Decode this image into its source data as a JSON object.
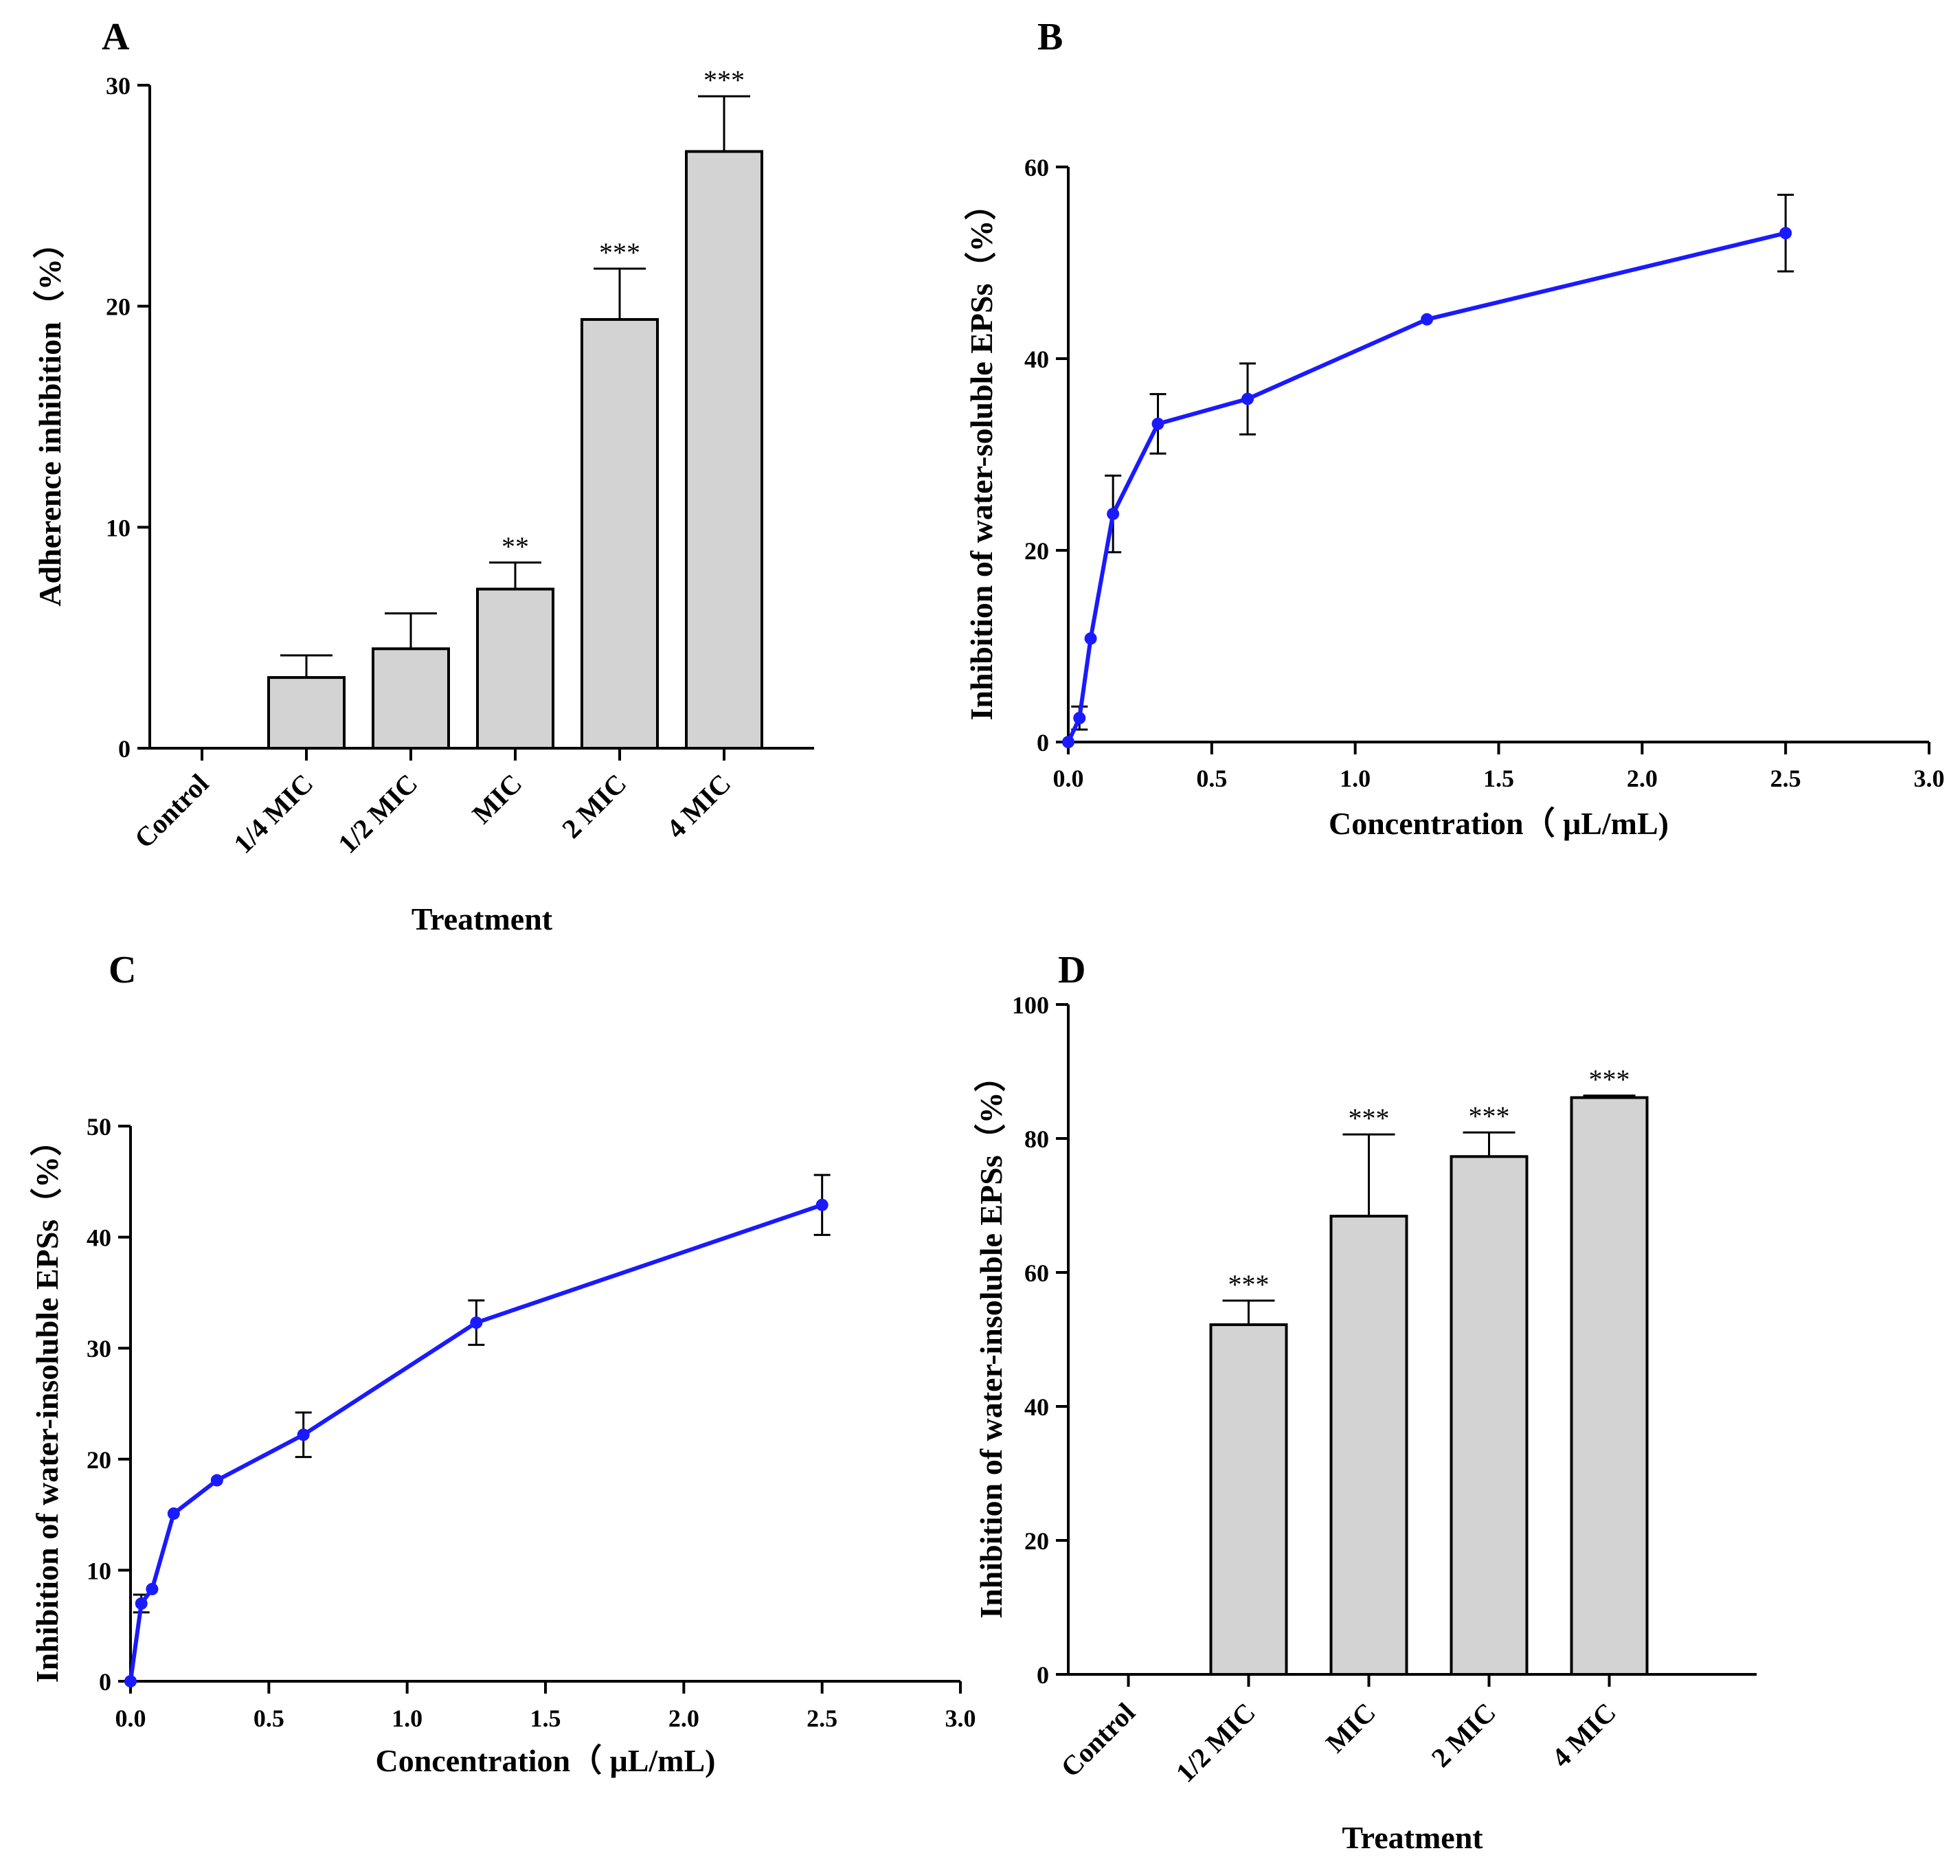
{
  "colors": {
    "bar_fill": "#d3d3d3",
    "bar_stroke": "#000000",
    "line": "#1a1aff",
    "axis": "#000000"
  },
  "chart_data": [
    {
      "id": "A",
      "panel_label": "A",
      "type": "bar",
      "title": "",
      "xlabel": "Treatment",
      "ylabel": "Adherence inhibition（%）",
      "ylim": [
        0,
        30
      ],
      "yticks": [
        0,
        10,
        20,
        30
      ],
      "categories": [
        "Control",
        "1/4 MIC",
        "1/2 MIC",
        "MIC",
        "2 MIC",
        "4 MIC"
      ],
      "values": [
        0,
        3.2,
        4.5,
        7.2,
        19.4,
        27.0
      ],
      "errors": [
        0,
        1.0,
        1.6,
        1.2,
        2.3,
        2.5
      ],
      "significance": [
        "",
        "",
        "",
        "**",
        "***",
        "***"
      ]
    },
    {
      "id": "B",
      "panel_label": "B",
      "type": "line",
      "title": "",
      "xlabel": "Concentration（ μL/mL)",
      "ylabel": "Inhibition of water-soluble EPSs（%）",
      "xlim": [
        0,
        3.0
      ],
      "ylim": [
        0,
        60
      ],
      "xticks": [
        "0.0",
        "0.5",
        "1.0",
        "1.5",
        "2.0",
        "2.5",
        "3.0"
      ],
      "yticks": [
        0,
        20,
        40,
        60
      ],
      "x": [
        0,
        0.039,
        0.078,
        0.156,
        0.3125,
        0.625,
        1.25,
        2.5
      ],
      "y": [
        0,
        2.5,
        10.8,
        23.8,
        33.2,
        35.8,
        44.1,
        53.1
      ],
      "errors": [
        0,
        1.2,
        0,
        4.0,
        3.1,
        3.7,
        0,
        4.0
      ]
    },
    {
      "id": "C",
      "panel_label": "C",
      "type": "line",
      "title": "",
      "xlabel": "Concentration（ μL/mL)",
      "ylabel": "Inhibition of water-insoluble EPSs（%）",
      "xlim": [
        0,
        3.0
      ],
      "ylim": [
        0,
        50
      ],
      "xticks": [
        "0.0",
        "0.5",
        "1.0",
        "1.5",
        "2.0",
        "2.5",
        "3.0"
      ],
      "yticks": [
        0,
        10,
        20,
        30,
        40,
        50
      ],
      "x": [
        0,
        0.039,
        0.078,
        0.156,
        0.3125,
        0.625,
        1.25,
        2.5
      ],
      "y": [
        0,
        7.0,
        8.3,
        15.1,
        18.1,
        22.2,
        32.3,
        42.9
      ],
      "errors": [
        0,
        0.8,
        0,
        0,
        0,
        2.0,
        2.0,
        2.7
      ]
    },
    {
      "id": "D",
      "panel_label": "D",
      "type": "bar",
      "title": "",
      "xlabel": "Treatment",
      "ylabel": "Inhibition of water-insoluble EPSs（%）",
      "ylim": [
        0,
        100
      ],
      "yticks": [
        0,
        20,
        40,
        60,
        80,
        100
      ],
      "categories": [
        "Control",
        "1/2 MIC",
        "MIC",
        "2 MIC",
        "4 MIC"
      ],
      "values": [
        0,
        52.2,
        68.4,
        77.3,
        86.1
      ],
      "errors": [
        0,
        3.6,
        12.2,
        3.6,
        0.3
      ],
      "significance": [
        "",
        "***",
        "***",
        "***",
        "***"
      ]
    }
  ]
}
